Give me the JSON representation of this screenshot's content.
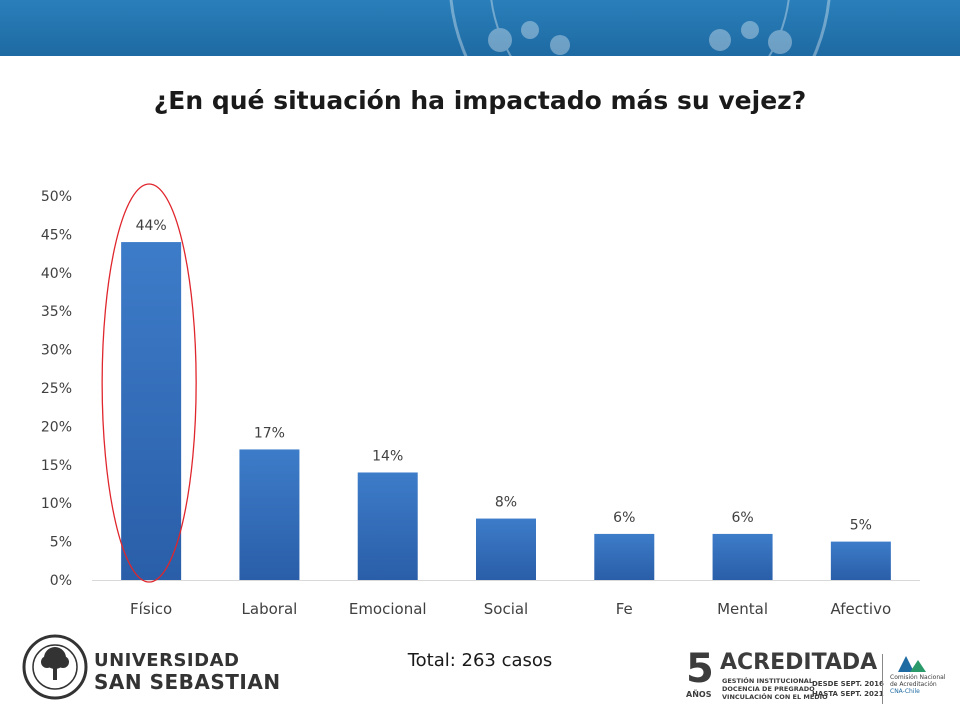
{
  "slide": {
    "title": "¿En qué situación ha impactado más su vejez?",
    "total_note": "Total: 263 casos"
  },
  "colors": {
    "banner": "#2272ad",
    "bar_top": "#3d7cc9",
    "bar_bottom": "#2a5ea8",
    "highlight_ellipse": "#e0262d",
    "tick_text": "#404040",
    "label_text": "#404040",
    "axis_line": "#d9d9d9"
  },
  "chart_data": {
    "type": "bar",
    "categories": [
      "Físico",
      "Laboral",
      "Emocional",
      "Social",
      "Fe",
      "Mental",
      "Afectivo"
    ],
    "values": [
      44,
      17,
      14,
      8,
      6,
      6,
      5
    ],
    "data_labels": [
      "44%",
      "17%",
      "14%",
      "8%",
      "6%",
      "6%",
      "5%"
    ],
    "ylim": [
      0,
      50
    ],
    "yticks": [
      0,
      5,
      10,
      15,
      20,
      25,
      30,
      35,
      40,
      45,
      50
    ],
    "ytick_labels": [
      "0%",
      "5%",
      "10%",
      "15%",
      "20%",
      "25%",
      "30%",
      "35%",
      "40%",
      "45%",
      "50%"
    ],
    "grid": false,
    "highlighted_category": "Físico"
  },
  "logos": {
    "university": {
      "line1": "UNIVERSIDAD",
      "line2": "SAN SEBASTIAN"
    },
    "accreditation": {
      "years_number": "5",
      "years_label": "AÑOS",
      "word": "ACREDITADA",
      "areas": [
        "GESTIÓN INSTITUCIONAL",
        "DOCENCIA DE PREGRADO",
        "VINCULACIÓN CON EL MEDIO"
      ],
      "since": "DESDE SEPT. 2016",
      "until": "HASTA SEPT. 2021",
      "agency": [
        "Comisión Nacional",
        "de Acreditación",
        "CNA-Chile"
      ]
    }
  }
}
